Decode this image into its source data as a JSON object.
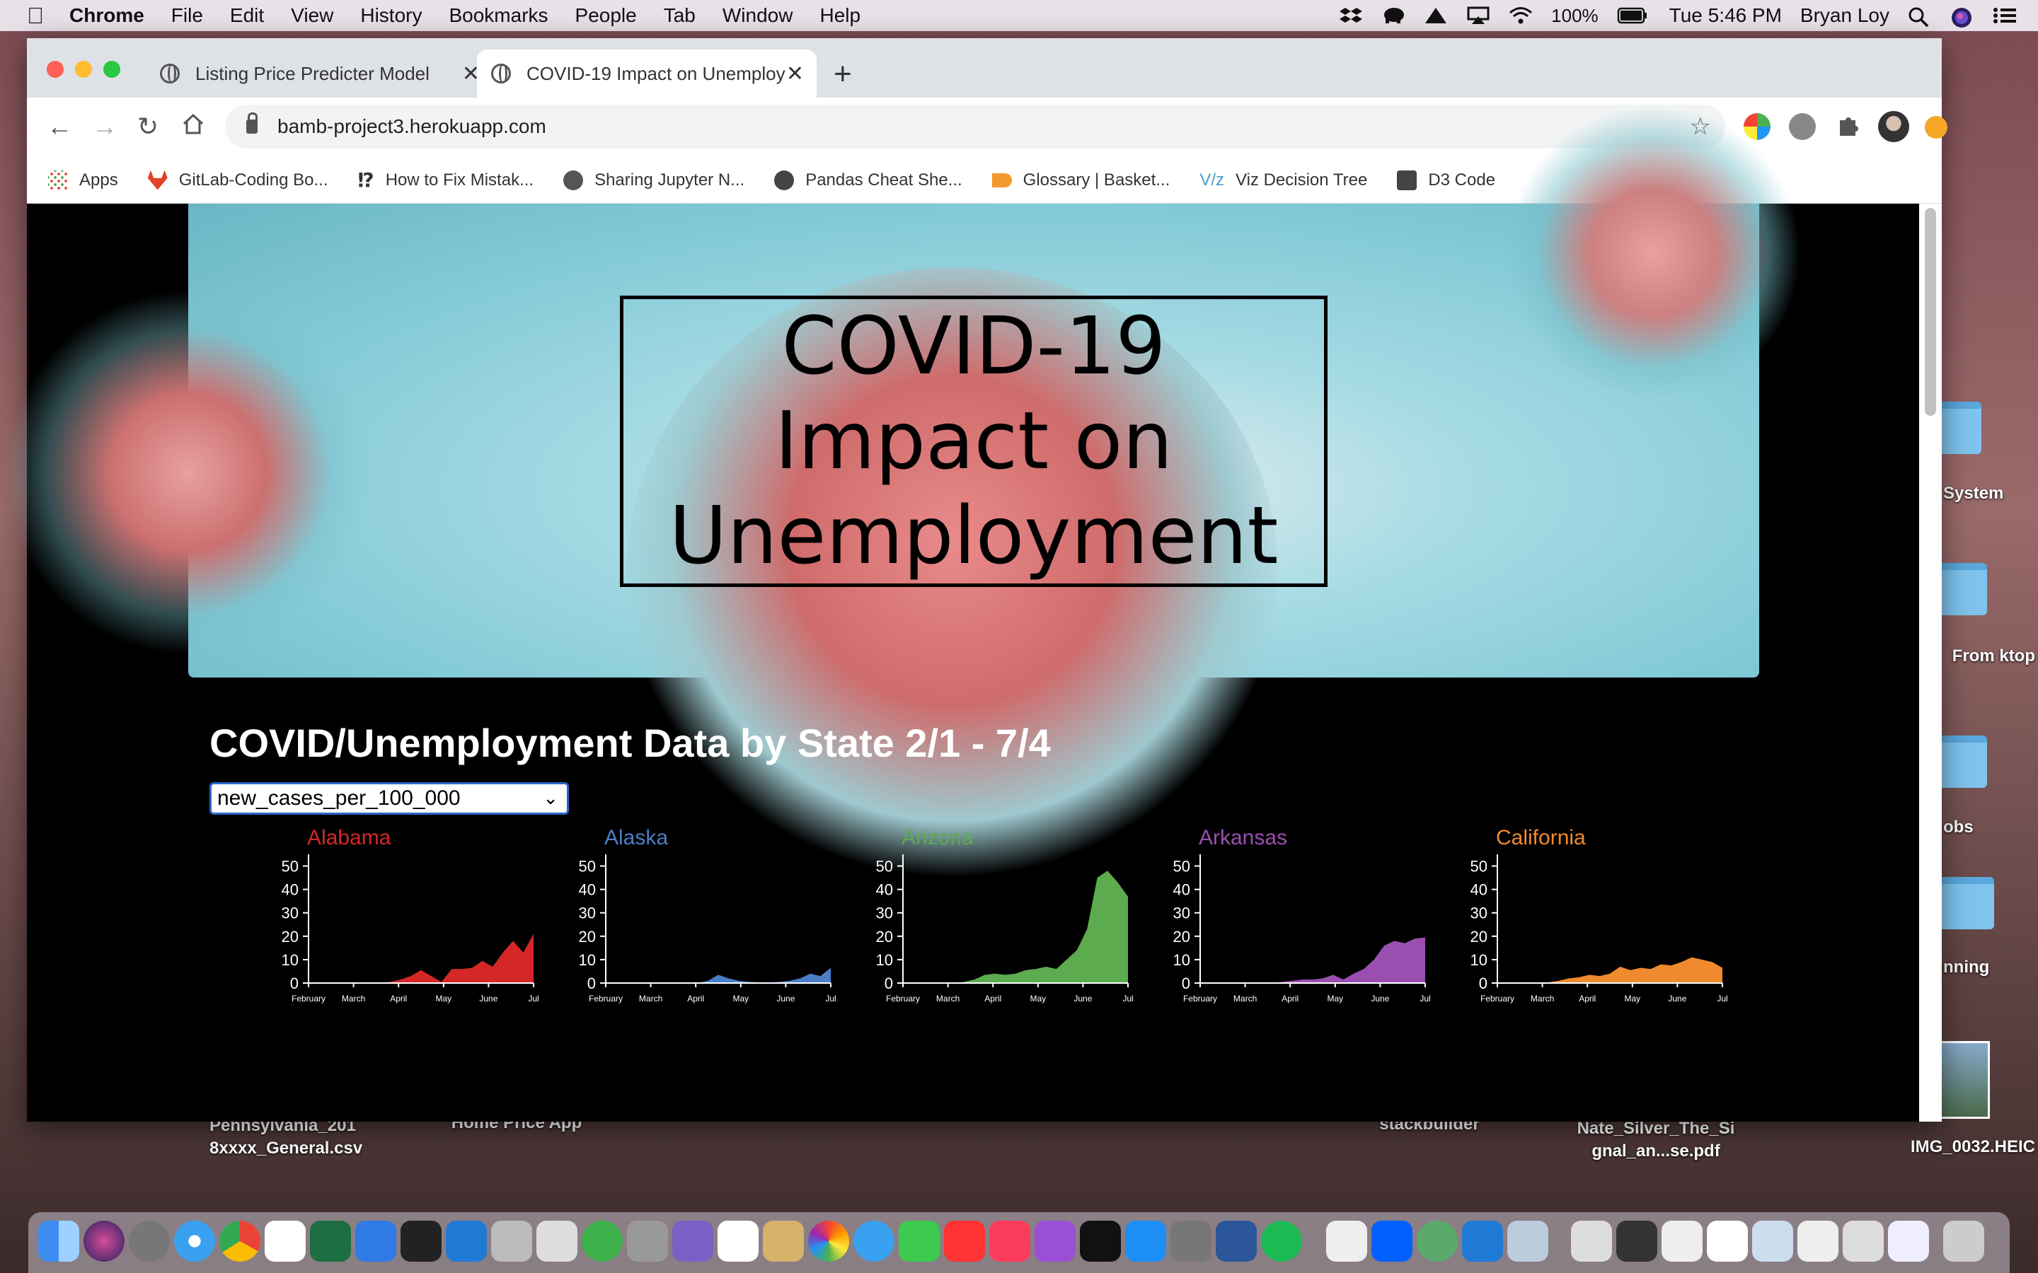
{
  "menubar": {
    "app": "Chrome",
    "items": [
      "File",
      "Edit",
      "View",
      "History",
      "Bookmarks",
      "People",
      "Tab",
      "Window",
      "Help"
    ],
    "battery": "100%",
    "clock": "Tue 5:46 PM",
    "user": "Bryan Loy"
  },
  "tabs": [
    {
      "title": "Listing Price Predicter Model"
    },
    {
      "title": "COVID-19 Impact on Unemploy"
    }
  ],
  "address": {
    "url": "bamb-project3.herokuapp.com"
  },
  "bookmarks": [
    {
      "label": "Apps"
    },
    {
      "label": "GitLab-Coding Bo..."
    },
    {
      "label": "How to Fix Mistak..."
    },
    {
      "label": "Sharing Jupyter N..."
    },
    {
      "label": "Pandas Cheat She..."
    },
    {
      "label": "Glossary | Basket..."
    },
    {
      "label": "Viz Decision Tree"
    },
    {
      "label": "D3 Code"
    }
  ],
  "hero": {
    "title": "COVID-19 Impact on Unemployment"
  },
  "section": {
    "heading": "COVID/Unemployment Data by State 2/1 - 7/4",
    "select_value": "new_cases_per_100_000"
  },
  "chart_data": [
    {
      "type": "area",
      "title": "Alabama",
      "color": "#d62728",
      "ylim": [
        0,
        55
      ],
      "yticks": [
        0,
        10,
        20,
        30,
        40,
        50
      ],
      "xticks": [
        "February",
        "March",
        "April",
        "May",
        "June",
        "Jul"
      ],
      "x_range": [
        0,
        22
      ],
      "x": [
        0,
        2,
        4,
        5,
        6,
        7,
        8,
        9,
        10,
        11,
        12,
        13,
        14,
        15,
        16,
        17,
        18,
        19,
        20,
        21,
        22
      ],
      "values": [
        0,
        0,
        0,
        0,
        0,
        0,
        0.5,
        1.5,
        3,
        5.5,
        3,
        0.5,
        6,
        6,
        6.5,
        9.5,
        7,
        13,
        18,
        13,
        21
      ]
    },
    {
      "type": "area",
      "title": "Alaska",
      "color": "#4a7fc8",
      "ylim": [
        0,
        55
      ],
      "yticks": [
        0,
        10,
        20,
        30,
        40,
        50
      ],
      "xticks": [
        "February",
        "March",
        "April",
        "May",
        "June",
        "Jul"
      ],
      "x_range": [
        0,
        22
      ],
      "x": [
        0,
        2,
        4,
        5,
        6,
        7,
        8,
        9,
        10,
        11,
        12,
        13,
        14,
        15,
        16,
        17,
        18,
        19,
        20,
        21,
        22
      ],
      "values": [
        0,
        0,
        0,
        0,
        0,
        0,
        0,
        0,
        1,
        3.5,
        2,
        1,
        0.5,
        0.3,
        0.3,
        0.5,
        1,
        2,
        4,
        3,
        6.5
      ]
    },
    {
      "type": "area",
      "title": "Arizona",
      "color": "#5cab4e",
      "ylim": [
        0,
        55
      ],
      "yticks": [
        0,
        10,
        20,
        30,
        40,
        50
      ],
      "xticks": [
        "February",
        "March",
        "April",
        "May",
        "June",
        "Jul"
      ],
      "x_range": [
        0,
        22
      ],
      "x": [
        0,
        2,
        4,
        5,
        6,
        7,
        8,
        9,
        10,
        11,
        12,
        13,
        14,
        15,
        16,
        17,
        18,
        19,
        20,
        21,
        22
      ],
      "values": [
        0,
        0,
        0,
        0,
        0.5,
        1.5,
        3.5,
        4,
        3.5,
        4,
        5.5,
        6,
        7,
        6,
        10,
        14,
        23,
        45,
        48,
        43,
        37
      ]
    },
    {
      "type": "area",
      "title": "Arkansas",
      "color": "#9a4fb0",
      "ylim": [
        0,
        55
      ],
      "yticks": [
        0,
        10,
        20,
        30,
        40,
        50
      ],
      "xticks": [
        "February",
        "March",
        "April",
        "May",
        "June",
        "Jul"
      ],
      "x_range": [
        0,
        22
      ],
      "x": [
        0,
        2,
        4,
        5,
        6,
        7,
        8,
        9,
        10,
        11,
        12,
        13,
        14,
        15,
        16,
        17,
        18,
        19,
        20,
        21,
        22
      ],
      "values": [
        0,
        0,
        0,
        0,
        0,
        0,
        0.5,
        1,
        1.5,
        1.5,
        2,
        3.5,
        1.5,
        4,
        6,
        10,
        16,
        18,
        17,
        19,
        19.5
      ]
    },
    {
      "type": "area",
      "title": "California",
      "color": "#f08a2e",
      "ylim": [
        0,
        55
      ],
      "yticks": [
        0,
        10,
        20,
        30,
        40,
        50
      ],
      "xticks": [
        "February",
        "March",
        "April",
        "May",
        "June",
        "Jul"
      ],
      "x_range": [
        0,
        22
      ],
      "x": [
        0,
        2,
        4,
        5,
        6,
        7,
        8,
        9,
        10,
        11,
        12,
        13,
        14,
        15,
        16,
        17,
        18,
        19,
        20,
        21,
        22
      ],
      "values": [
        0,
        0,
        0,
        0.3,
        1,
        2,
        2.5,
        3.5,
        3,
        4,
        7,
        5.5,
        6.5,
        6,
        8,
        7.5,
        9,
        11,
        10,
        9,
        6.5
      ]
    }
  ],
  "desktop": {
    "files": [
      "Pennsylvania_201 8xxxx_General.csv",
      "Home Price App",
      "stackbuilder",
      "Nate_Silver_The_Si gnal_an...se.pdf",
      "IMG_0032.HEIC"
    ],
    "folders": [
      "System",
      "From ktop",
      "obs",
      "nning"
    ]
  }
}
